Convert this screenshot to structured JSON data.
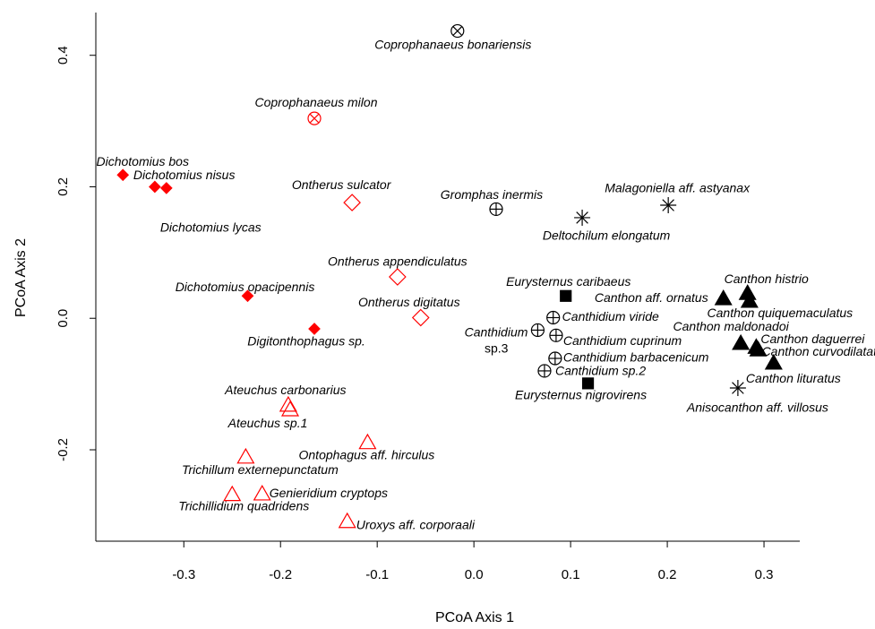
{
  "chart_data": {
    "type": "scatter",
    "xlabel": "PCoA Axis 1",
    "ylabel": "PCoA Axis 2",
    "xlim": [
      -0.391,
      0.337
    ],
    "ylim": [
      -0.339,
      0.465
    ],
    "xticks": [
      -0.3,
      -0.2,
      -0.1,
      {
        "value": 0,
        "label": "0.0"
      },
      0.1,
      0.2,
      0.3
    ],
    "yticks": [
      -0.2,
      {
        "value": 0,
        "label": "0.0"
      },
      0.2,
      0.4
    ],
    "labels": [
      "Coprophanaeus bonariensis",
      "Coprophanaeus milon",
      "Dichotomius bos",
      "Dichotomius nisus",
      "Dichotomius lycas",
      "Dichotomius opacipennis",
      "Digitonthophagus sp.",
      "Ontherus sulcator",
      "Ontherus appendiculatus",
      "Ontherus digitatus",
      "Ateuchus carbonarius",
      "Ateuchus sp.1",
      "Ontophagus aff. hirculus",
      "Trichillum externepunctatum",
      "Trichillidium quadridens",
      "Genieridium cryptops",
      "Uroxys aff. corporaali",
      "Gromphas inermis",
      "Deltochilum elongatum",
      "Malagoniella aff. astyanax",
      "Eurysternus caribaeus",
      "Eurysternus nigrovirens",
      "Canthidium viride",
      "Canthidium sp.3",
      "Canthidium cuprinum",
      "Canthidium barbacenicum",
      "Canthidium sp.2",
      "Canthon histrio",
      "Canthon aff. ornatus",
      "Canthon quiquemaculatus",
      "Canthon maldonadoi",
      "Canthon daguerrei",
      "Canthon curvodilatatus",
      "Canthon lituratus",
      "Anisocanthon aff. villosus"
    ],
    "x": [
      -0.017,
      -0.165,
      -0.363,
      -0.33,
      -0.318,
      -0.234,
      -0.165,
      -0.126,
      -0.079,
      -0.055,
      -0.192,
      -0.19,
      -0.11,
      -0.236,
      -0.25,
      -0.219,
      -0.131,
      0.023,
      0.112,
      0.201,
      0.095,
      0.118,
      0.082,
      0.066,
      0.085,
      0.084,
      0.073,
      0.283,
      0.258,
      0.285,
      0.276,
      0.292,
      0.294,
      0.31,
      0.273
    ],
    "y": [
      0.437,
      0.304,
      0.218,
      0.2,
      0.198,
      0.034,
      -0.016,
      0.176,
      0.063,
      0.001,
      -0.132,
      -0.139,
      -0.189,
      -0.211,
      -0.268,
      -0.267,
      -0.309,
      0.166,
      0.153,
      0.172,
      0.034,
      -0.099,
      0.001,
      -0.018,
      -0.026,
      -0.061,
      -0.08,
      0.038,
      0.03,
      0.026,
      -0.038,
      -0.044,
      -0.048,
      -0.068,
      -0.106
    ],
    "markers": [
      "circle-x",
      "circle-x",
      "diamond",
      "diamond",
      "diamond",
      "diamond",
      "diamond",
      "open-diamond",
      "open-diamond",
      "open-diamond",
      "open-triangle",
      "open-triangle",
      "open-triangle",
      "open-triangle",
      "open-triangle",
      "open-triangle",
      "open-triangle",
      "circle-plus",
      "asterisk",
      "asterisk",
      "square",
      "square",
      "circle-plus",
      "circle-plus",
      "circle-plus",
      "circle-plus",
      "circle-plus",
      "triangle",
      "triangle",
      "triangle",
      "triangle",
      "triangle",
      "triangle",
      "triangle",
      "asterisk"
    ],
    "colors": [
      "#000000",
      "#ff0000",
      "#ff0000",
      "#ff0000",
      "#ff0000",
      "#ff0000",
      "#ff0000",
      "#ff0000",
      "#ff0000",
      "#ff0000",
      "#ff0000",
      "#ff0000",
      "#ff0000",
      "#ff0000",
      "#ff0000",
      "#ff0000",
      "#ff0000",
      "#000000",
      "#000000",
      "#000000",
      "#000000",
      "#000000",
      "#000000",
      "#000000",
      "#000000",
      "#000000",
      "#000000",
      "#000000",
      "#000000",
      "#000000",
      "#000000",
      "#000000",
      "#000000",
      "#000000",
      "#000000"
    ]
  }
}
